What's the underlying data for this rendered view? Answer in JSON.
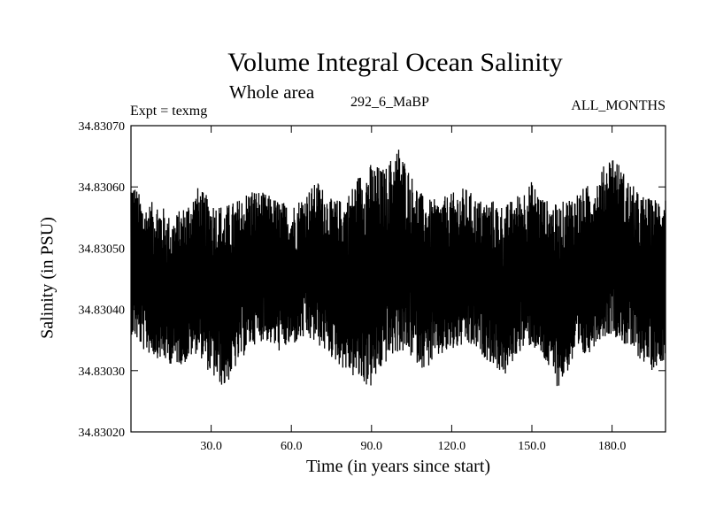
{
  "chart_data": {
    "type": "line",
    "title": "Volume Integral Ocean Salinity",
    "subtitle": "Whole area",
    "expt_label": "Expt = texmg",
    "expt_code": "292_6_MaBP",
    "period_label": "ALL_MONTHS",
    "xlabel": "Time (in years since start)",
    "ylabel": "Salinity (in PSU)",
    "xlim": [
      0,
      200
    ],
    "ylim": [
      34.8302,
      34.8307
    ],
    "xticks": [
      30,
      60,
      90,
      120,
      150,
      180
    ],
    "xtick_labels": [
      "30.0",
      "60.0",
      "90.0",
      "120.0",
      "150.0",
      "180.0"
    ],
    "yticks": [
      34.8302,
      34.8303,
      34.8304,
      34.8305,
      34.8306,
      34.8307
    ],
    "ytick_labels": [
      "34.83020",
      "34.83030",
      "34.83040",
      "34.83050",
      "34.83060",
      "34.83070"
    ],
    "series": [
      {
        "name": "salinity",
        "x": [
          0,
          5,
          10,
          15,
          20,
          25,
          30,
          35,
          40,
          45,
          50,
          55,
          60,
          65,
          70,
          75,
          80,
          85,
          90,
          95,
          100,
          105,
          110,
          115,
          120,
          125,
          130,
          135,
          140,
          145,
          150,
          155,
          160,
          165,
          170,
          175,
          180,
          185,
          190,
          195,
          200
        ],
        "mean": [
          34.83047,
          34.83045,
          34.83043,
          34.83041,
          34.83043,
          34.83046,
          34.83043,
          34.83041,
          34.83043,
          34.83046,
          34.83047,
          34.83045,
          34.83044,
          34.83047,
          34.83048,
          34.83045,
          34.83044,
          34.83046,
          34.83045,
          34.83046,
          34.83048,
          34.83047,
          34.83045,
          34.83044,
          34.83045,
          34.83046,
          34.83045,
          34.83043,
          34.83042,
          34.83045,
          34.83046,
          34.83044,
          34.83043,
          34.83044,
          34.83045,
          34.83047,
          34.83049,
          34.83046,
          34.83044,
          34.83045,
          34.83046
        ],
        "high": [
          34.83062,
          34.83057,
          34.83058,
          34.83055,
          34.83057,
          34.8306,
          34.83058,
          34.83057,
          34.83058,
          34.8306,
          34.83059,
          34.83058,
          34.83057,
          34.83059,
          34.83061,
          34.83058,
          34.83058,
          34.83062,
          34.83064,
          34.83063,
          34.83067,
          34.83062,
          34.83058,
          34.83058,
          34.83059,
          34.8306,
          34.83058,
          34.83058,
          34.83057,
          34.83059,
          34.83061,
          34.83058,
          34.83057,
          34.83059,
          34.8306,
          34.83062,
          34.83066,
          34.83062,
          34.83059,
          34.83058,
          34.83059
        ],
        "low": [
          34.83036,
          34.83033,
          34.83032,
          34.83031,
          34.83031,
          34.83033,
          34.83029,
          34.83027,
          34.83031,
          34.83034,
          34.83035,
          34.83033,
          34.83034,
          34.83035,
          34.83034,
          34.83032,
          34.8303,
          34.83028,
          34.83027,
          34.83031,
          34.83033,
          34.83032,
          34.8303,
          34.83032,
          34.83033,
          34.83034,
          34.83033,
          34.83031,
          34.83029,
          34.83033,
          34.83034,
          34.83031,
          34.83027,
          34.83031,
          34.83032,
          34.83035,
          34.83036,
          34.83034,
          34.83032,
          34.8303,
          34.83032
        ]
      }
    ]
  }
}
